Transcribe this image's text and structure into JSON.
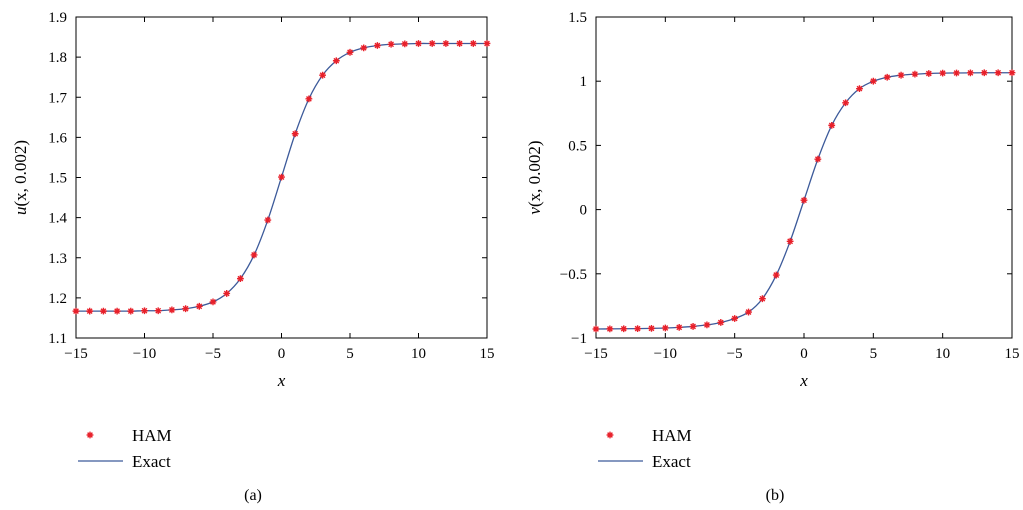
{
  "colors": {
    "exact_line": "#3c5a9a",
    "ham_marker": "#e8202a",
    "axis": "#000000"
  },
  "chart_data": [
    {
      "type": "line",
      "caption": "(a)",
      "xlabel": "x",
      "ylabel_var": "u",
      "ylabel_args": "(x, 0.002)",
      "xlim": [
        -15,
        15
      ],
      "ylim": [
        1.1,
        1.9
      ],
      "xticks": [
        -15,
        -10,
        -5,
        0,
        5,
        10,
        15
      ],
      "xtick_labels": [
        "−15",
        "−10",
        "−5",
        "0",
        "5",
        "10",
        "15"
      ],
      "yticks": [
        1.1,
        1.2,
        1.3,
        1.4,
        1.5,
        1.6,
        1.7,
        1.8,
        1.9
      ],
      "ytick_labels": [
        "1.1",
        "1.2",
        "1.3",
        "1.4",
        "1.5",
        "1.6",
        "1.7",
        "1.8",
        "1.9"
      ],
      "legend_position": "below-left",
      "series": [
        {
          "name": "HAM",
          "style": "markers",
          "x": [
            -15,
            -14,
            -13,
            -12,
            -11,
            -10,
            -9,
            -8,
            -7,
            -6,
            -5,
            -4,
            -3,
            -2,
            -1,
            0,
            1,
            2,
            3,
            4,
            5,
            6,
            7,
            8,
            9,
            10,
            11,
            12,
            13,
            14,
            15
          ],
          "y": [
            1.167,
            1.167,
            1.167,
            1.167,
            1.167,
            1.168,
            1.168,
            1.17,
            1.173,
            1.179,
            1.19,
            1.211,
            1.248,
            1.307,
            1.394,
            1.501,
            1.609,
            1.696,
            1.755,
            1.791,
            1.812,
            1.823,
            1.829,
            1.832,
            1.833,
            1.834,
            1.834,
            1.834,
            1.834,
            1.834,
            1.834
          ]
        },
        {
          "name": "Exact",
          "style": "line",
          "x": [
            -15,
            -14,
            -13,
            -12,
            -11,
            -10,
            -9,
            -8,
            -7,
            -6,
            -5,
            -4,
            -3,
            -2,
            -1,
            0,
            1,
            2,
            3,
            4,
            5,
            6,
            7,
            8,
            9,
            10,
            11,
            12,
            13,
            14,
            15
          ],
          "y": [
            1.167,
            1.167,
            1.167,
            1.167,
            1.167,
            1.168,
            1.168,
            1.17,
            1.173,
            1.179,
            1.19,
            1.211,
            1.248,
            1.307,
            1.394,
            1.501,
            1.609,
            1.696,
            1.755,
            1.791,
            1.812,
            1.823,
            1.829,
            1.832,
            1.833,
            1.834,
            1.834,
            1.834,
            1.834,
            1.834,
            1.834
          ]
        }
      ]
    },
    {
      "type": "line",
      "caption": "(b)",
      "xlabel": "x",
      "ylabel_var": "v",
      "ylabel_args": "(x, 0.002)",
      "xlim": [
        -15,
        15
      ],
      "ylim": [
        -1,
        1.5
      ],
      "xticks": [
        -15,
        -10,
        -5,
        0,
        5,
        10,
        15
      ],
      "xtick_labels": [
        "−15",
        "−10",
        "−5",
        "0",
        "5",
        "10",
        "15"
      ],
      "yticks": [
        -1,
        -0.5,
        0,
        0.5,
        1,
        1.5
      ],
      "ytick_labels": [
        "−1",
        "−0.5",
        "0",
        "0.5",
        "1",
        "1.5"
      ],
      "legend_position": "below-left",
      "series": [
        {
          "name": "HAM",
          "style": "markers",
          "x": [
            -15,
            -14,
            -13,
            -12,
            -11,
            -10,
            -9,
            -8,
            -7,
            -6,
            -5,
            -4,
            -3,
            -2,
            -1,
            0,
            1,
            2,
            3,
            4,
            5,
            6,
            7,
            8,
            9,
            10,
            11,
            12,
            13,
            14,
            15
          ],
          "y": [
            -0.93,
            -0.929,
            -0.928,
            -0.927,
            -0.925,
            -0.922,
            -0.917,
            -0.91,
            -0.898,
            -0.879,
            -0.848,
            -0.798,
            -0.694,
            -0.51,
            -0.247,
            0.073,
            0.393,
            0.656,
            0.832,
            0.942,
            1.0,
            1.031,
            1.047,
            1.055,
            1.06,
            1.063,
            1.064,
            1.065,
            1.066,
            1.066,
            1.066
          ]
        },
        {
          "name": "Exact",
          "style": "line",
          "x": [
            -15,
            -14,
            -13,
            -12,
            -11,
            -10,
            -9,
            -8,
            -7,
            -6,
            -5,
            -4,
            -3,
            -2,
            -1,
            0,
            1,
            2,
            3,
            4,
            5,
            6,
            7,
            8,
            9,
            10,
            11,
            12,
            13,
            14,
            15
          ],
          "y": [
            -0.93,
            -0.929,
            -0.928,
            -0.927,
            -0.925,
            -0.922,
            -0.917,
            -0.91,
            -0.898,
            -0.879,
            -0.848,
            -0.798,
            -0.694,
            -0.51,
            -0.247,
            0.073,
            0.393,
            0.656,
            0.832,
            0.942,
            1.0,
            1.031,
            1.047,
            1.055,
            1.06,
            1.063,
            1.064,
            1.065,
            1.066,
            1.066,
            1.066
          ]
        }
      ]
    }
  ]
}
